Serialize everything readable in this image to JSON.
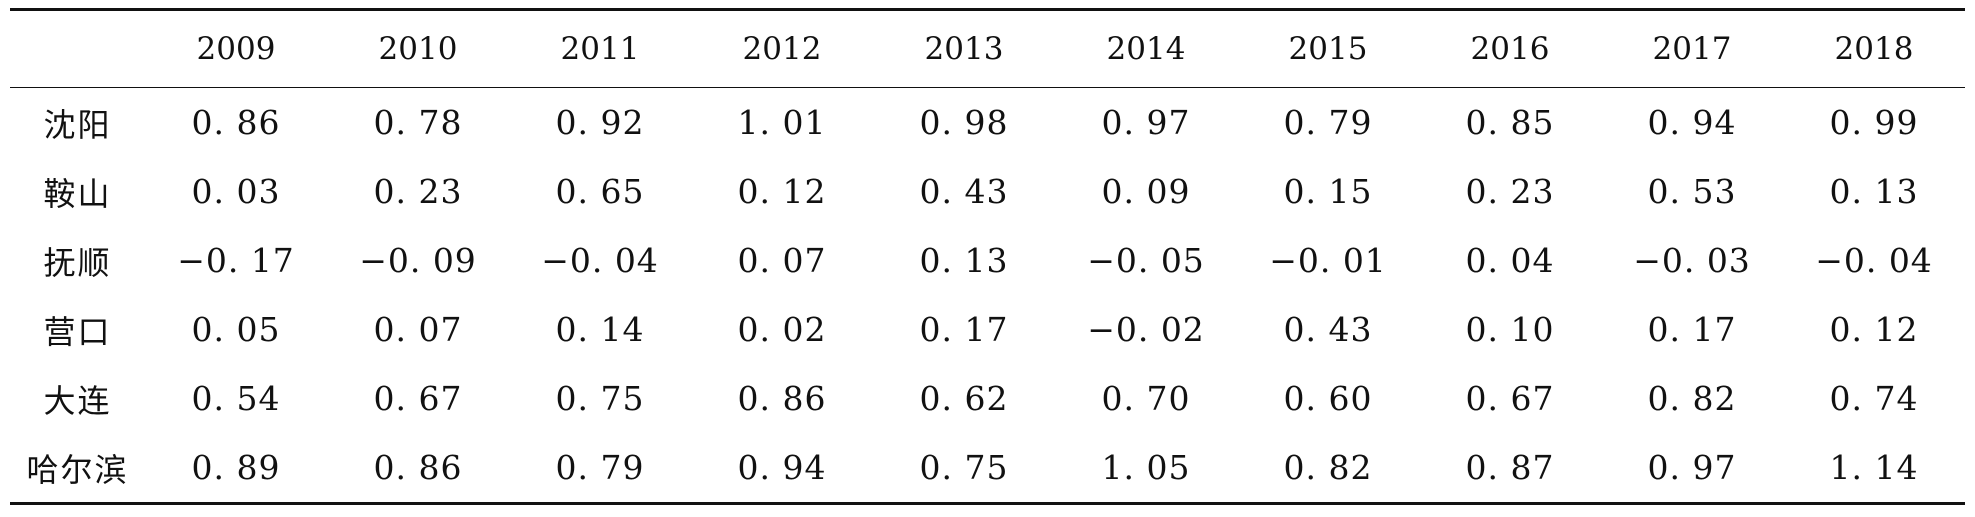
{
  "table": {
    "corner": "",
    "columns": [
      "2009",
      "2010",
      "2011",
      "2012",
      "2013",
      "2014",
      "2015",
      "2016",
      "2017",
      "2018"
    ],
    "rows": [
      {
        "city": "沈阳",
        "values": [
          "0. 86",
          "0. 78",
          "0. 92",
          "1. 01",
          "0. 98",
          "0. 97",
          "0. 79",
          "0. 85",
          "0. 94",
          "0. 99"
        ]
      },
      {
        "city": "鞍山",
        "values": [
          "0. 03",
          "0. 23",
          "0. 65",
          "0. 12",
          "0. 43",
          "0. 09",
          "0. 15",
          "0. 23",
          "0. 53",
          "0. 13"
        ]
      },
      {
        "city": "抚顺",
        "values": [
          "−0. 17",
          "−0. 09",
          "−0. 04",
          "0. 07",
          "0. 13",
          "−0. 05",
          "−0. 01",
          "0. 04",
          "−0. 03",
          "−0. 04"
        ]
      },
      {
        "city": "营口",
        "values": [
          "0. 05",
          "0. 07",
          "0. 14",
          "0. 02",
          "0. 17",
          "−0. 02",
          "0. 43",
          "0. 10",
          "0. 17",
          "0. 12"
        ]
      },
      {
        "city": "大连",
        "values": [
          "0. 54",
          "0. 67",
          "0. 75",
          "0. 86",
          "0. 62",
          "0. 70",
          "0. 60",
          "0. 67",
          "0. 82",
          "0. 74"
        ]
      },
      {
        "city": "哈尔滨",
        "values": [
          "0. 89",
          "0. 86",
          "0. 79",
          "0. 94",
          "0. 75",
          "1. 05",
          "0. 82",
          "0. 87",
          "0. 97",
          "1. 14"
        ]
      }
    ]
  }
}
